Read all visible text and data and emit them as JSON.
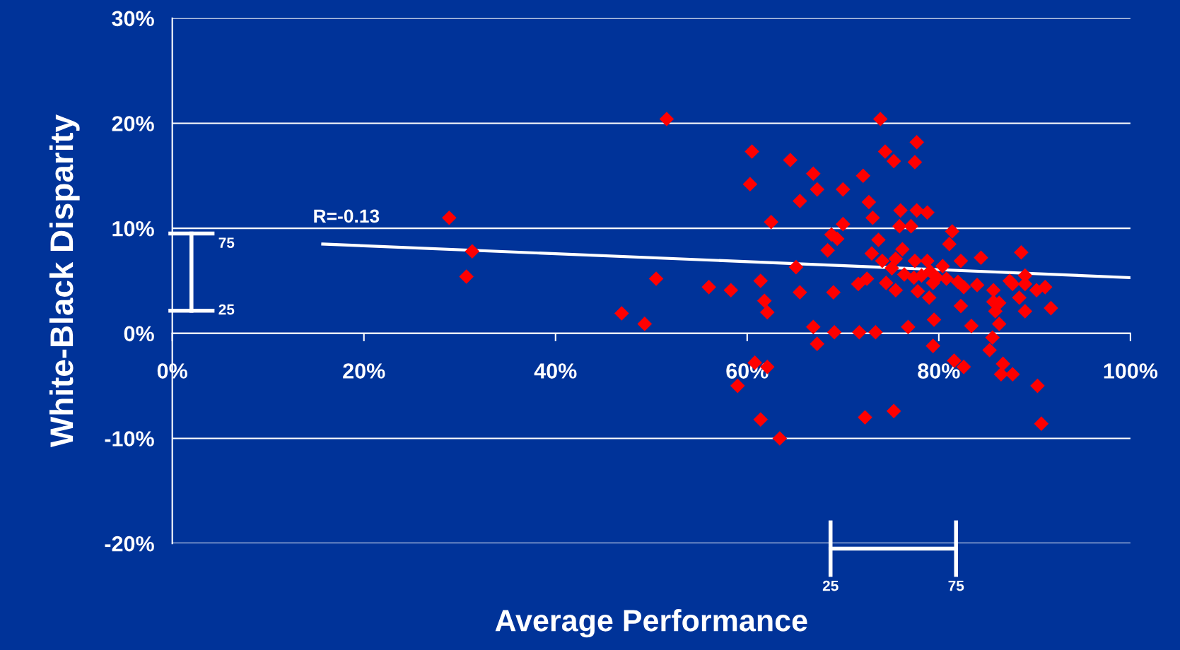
{
  "chart_data": {
    "type": "scatter",
    "xlabel": "Average Performance",
    "ylabel": "White-Black Disparity",
    "xlim": [
      0,
      100
    ],
    "ylim": [
      -20,
      30
    ],
    "xticks": [
      {
        "value": 0,
        "label": "0%"
      },
      {
        "value": 20,
        "label": "20%"
      },
      {
        "value": 40,
        "label": "40%"
      },
      {
        "value": 60,
        "label": "60%"
      },
      {
        "value": 80,
        "label": "80%"
      },
      {
        "value": 100,
        "label": "100%"
      }
    ],
    "yticks": [
      {
        "value": -20,
        "label": "-20%"
      },
      {
        "value": -10,
        "label": "-10%"
      },
      {
        "value": 0,
        "label": "0%"
      },
      {
        "value": 10,
        "label": "10%"
      },
      {
        "value": 20,
        "label": "20%"
      },
      {
        "value": 30,
        "label": "30%"
      }
    ],
    "grid": "y",
    "series": [
      {
        "color": "#ff0000",
        "marker": "diamond",
        "x": [
          28.9,
          31.3,
          30.7,
          46.9,
          49.3,
          50.5,
          51.6,
          56.0,
          58.3,
          59.0,
          60.5,
          60.3,
          60.8,
          61.4,
          61.8,
          62.1,
          62.1,
          61.4,
          62.5,
          63.4,
          64.5,
          65.1,
          65.5,
          65.5,
          66.9,
          66.9,
          67.3,
          67.3,
          68.4,
          68.8,
          69.0,
          69.1,
          69.4,
          70.0,
          70.0,
          71.6,
          71.7,
          72.1,
          72.3,
          72.5,
          72.7,
          73.1,
          73.4,
          73.7,
          73.0,
          73.9,
          74.4,
          74.5,
          75.3,
          75.3,
          75.5,
          75.5,
          76.0,
          75.9,
          76.2,
          76.4,
          76.8,
          77.1,
          77.5,
          77.7,
          77.7,
          77.5,
          77.8,
          77.4,
          78.8,
          78.8,
          79.0,
          79.4,
          79.4,
          79.5,
          80.4,
          80.8,
          81.1,
          81.4,
          81.6,
          82.0,
          82.3,
          82.3,
          82.6,
          82.6,
          83.4,
          84.0,
          84.4,
          85.3,
          85.6,
          85.7,
          85.7,
          85.9,
          86.3,
          86.3,
          86.7,
          86.5,
          87.4,
          87.7,
          87.7,
          88.4,
          88.6,
          89.0,
          89.0,
          89.0,
          90.2,
          90.3,
          90.7,
          91.1,
          91.7,
          74.1,
          75.1,
          78.2,
          79.1,
          79.8
        ],
        "values": [
          11.0,
          7.8,
          5.4,
          1.9,
          0.9,
          5.2,
          20.4,
          4.4,
          4.1,
          -5.0,
          17.3,
          14.2,
          -2.8,
          5.0,
          3.1,
          2.0,
          -3.2,
          -8.2,
          10.6,
          -10.0,
          16.5,
          6.3,
          12.6,
          3.9,
          15.2,
          0.6,
          13.7,
          -1.0,
          7.9,
          9.4,
          3.9,
          0.1,
          9.0,
          10.4,
          13.7,
          4.7,
          0.1,
          15.0,
          -8.0,
          5.2,
          12.5,
          11.0,
          0.1,
          8.9,
          7.6,
          20.4,
          17.3,
          4.8,
          16.4,
          -7.4,
          7.1,
          4.1,
          11.7,
          10.2,
          8.0,
          5.6,
          0.6,
          10.2,
          16.3,
          18.2,
          11.7,
          6.9,
          4.0,
          5.3,
          11.5,
          6.9,
          3.4,
          4.8,
          -1.2,
          1.3,
          6.4,
          5.2,
          8.5,
          9.7,
          -2.6,
          4.9,
          6.9,
          2.6,
          -3.2,
          4.4,
          0.7,
          4.6,
          7.2,
          -1.6,
          -0.4,
          4.1,
          3.0,
          2.1,
          2.9,
          0.9,
          -2.9,
          -3.9,
          5.0,
          4.7,
          -3.9,
          3.4,
          7.7,
          5.5,
          4.7,
          2.1,
          4.1,
          -5.0,
          -8.6,
          4.4,
          2.4,
          6.9,
          6.2,
          5.5,
          5.9,
          5.3
        ]
      },
      {
        "type": "line",
        "color": "#ffffff",
        "x": [
          15.7,
          100
        ],
        "values": [
          8.5,
          5.3
        ]
      }
    ],
    "annotations": [
      {
        "text": "R=-0.13",
        "x": 15.7,
        "y": 8.5
      },
      "75",
      "25",
      "25",
      "75"
    ]
  }
}
